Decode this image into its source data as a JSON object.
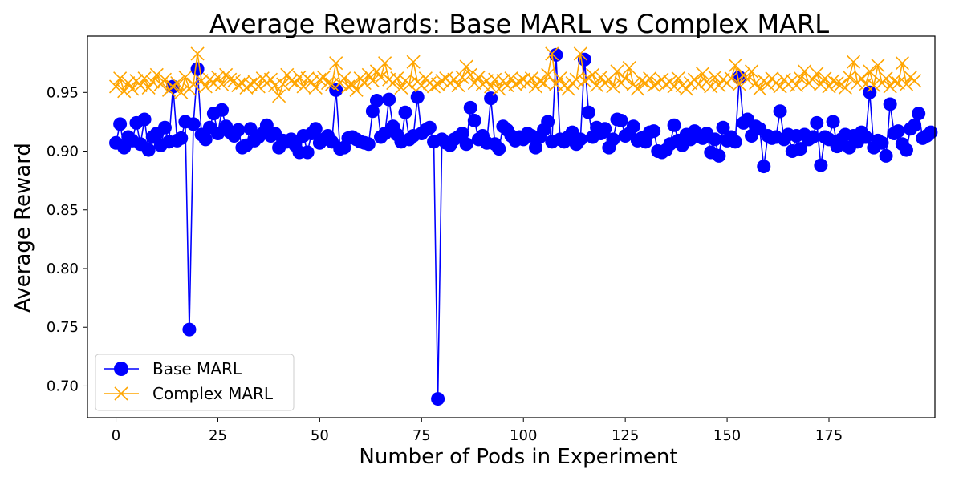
{
  "chart_data": {
    "type": "line",
    "title": "Average Rewards: Base MARL vs Complex MARL",
    "xlabel": "Number of Pods in Experiment",
    "ylabel": "Average Reward",
    "xlim": [
      -7,
      201
    ],
    "ylim": [
      0.673,
      0.998
    ],
    "xticks": [
      0,
      25,
      50,
      75,
      100,
      125,
      150,
      175
    ],
    "yticks": [
      0.7,
      0.75,
      0.8,
      0.85,
      0.9,
      0.95
    ],
    "ytick_labels": [
      "0.70",
      "0.75",
      "0.80",
      "0.85",
      "0.90",
      "0.95"
    ],
    "grid": false,
    "legend_position": "lower-left",
    "series": [
      {
        "name": "Base MARL",
        "color": "#0000ff",
        "marker": "circle",
        "values": [
          0.907,
          0.923,
          0.903,
          0.912,
          0.909,
          0.924,
          0.906,
          0.927,
          0.901,
          0.912,
          0.915,
          0.905,
          0.92,
          0.908,
          0.955,
          0.909,
          0.911,
          0.925,
          0.748,
          0.923,
          0.97,
          0.914,
          0.91,
          0.92,
          0.932,
          0.915,
          0.935,
          0.921,
          0.916,
          0.913,
          0.918,
          0.903,
          0.905,
          0.919,
          0.909,
          0.912,
          0.915,
          0.922,
          0.913,
          0.915,
          0.903,
          0.909,
          0.908,
          0.91,
          0.905,
          0.899,
          0.913,
          0.899,
          0.915,
          0.919,
          0.907,
          0.91,
          0.913,
          0.908,
          0.952,
          0.902,
          0.903,
          0.911,
          0.912,
          0.91,
          0.908,
          0.907,
          0.906,
          0.934,
          0.943,
          0.912,
          0.915,
          0.944,
          0.921,
          0.914,
          0.908,
          0.933,
          0.91,
          0.913,
          0.946,
          0.915,
          0.918,
          0.92,
          0.908,
          0.689,
          0.91,
          0.907,
          0.905,
          0.91,
          0.912,
          0.915,
          0.906,
          0.937,
          0.926,
          0.91,
          0.913,
          0.907,
          0.945,
          0.906,
          0.902,
          0.921,
          0.918,
          0.913,
          0.909,
          0.912,
          0.91,
          0.915,
          0.913,
          0.903,
          0.912,
          0.918,
          0.925,
          0.908,
          0.982,
          0.91,
          0.908,
          0.912,
          0.916,
          0.906,
          0.91,
          0.978,
          0.933,
          0.912,
          0.92,
          0.915,
          0.919,
          0.903,
          0.91,
          0.927,
          0.926,
          0.913,
          0.915,
          0.921,
          0.909,
          0.911,
          0.908,
          0.916,
          0.917,
          0.9,
          0.899,
          0.901,
          0.906,
          0.922,
          0.909,
          0.905,
          0.914,
          0.91,
          0.917,
          0.913,
          0.911,
          0.915,
          0.899,
          0.91,
          0.896,
          0.92,
          0.909,
          0.912,
          0.908,
          0.963,
          0.924,
          0.927,
          0.913,
          0.921,
          0.919,
          0.887,
          0.913,
          0.911,
          0.912,
          0.934,
          0.91,
          0.914,
          0.9,
          0.913,
          0.902,
          0.914,
          0.91,
          0.912,
          0.924,
          0.888,
          0.912,
          0.91,
          0.925,
          0.904,
          0.91,
          0.914,
          0.903,
          0.913,
          0.908,
          0.916,
          0.912,
          0.95,
          0.903,
          0.909,
          0.907,
          0.896,
          0.94,
          0.915,
          0.917,
          0.906,
          0.901,
          0.919,
          0.922,
          0.932,
          0.911,
          0.913,
          0.916
        ]
      },
      {
        "name": "Complex MARL",
        "color": "#ffa500",
        "marker": "x",
        "values": [
          0.955,
          0.962,
          0.951,
          0.958,
          0.953,
          0.96,
          0.956,
          0.962,
          0.954,
          0.959,
          0.965,
          0.957,
          0.961,
          0.952,
          0.955,
          0.958,
          0.95,
          0.963,
          0.953,
          0.957,
          0.983,
          0.96,
          0.955,
          0.961,
          0.958,
          0.963,
          0.957,
          0.965,
          0.961,
          0.96,
          0.956,
          0.958,
          0.954,
          0.957,
          0.959,
          0.955,
          0.962,
          0.958,
          0.961,
          0.956,
          0.947,
          0.957,
          0.965,
          0.96,
          0.958,
          0.963,
          0.955,
          0.962,
          0.959,
          0.954,
          0.961,
          0.963,
          0.958,
          0.957,
          0.975,
          0.958,
          0.962,
          0.955,
          0.957,
          0.952,
          0.962,
          0.958,
          0.965,
          0.96,
          0.968,
          0.963,
          0.975,
          0.961,
          0.958,
          0.962,
          0.954,
          0.96,
          0.957,
          0.976,
          0.959,
          0.956,
          0.962,
          0.958,
          0.955,
          0.957,
          0.96,
          0.962,
          0.958,
          0.961,
          0.956,
          0.963,
          0.972,
          0.965,
          0.958,
          0.963,
          0.957,
          0.96,
          0.955,
          0.961,
          0.953,
          0.96,
          0.956,
          0.962,
          0.957,
          0.959,
          0.961,
          0.958,
          0.962,
          0.955,
          0.96,
          0.958,
          0.965,
          0.983,
          0.957,
          0.962,
          0.956,
          0.953,
          0.958,
          0.961,
          0.983,
          0.96,
          0.962,
          0.965,
          0.956,
          0.963,
          0.958,
          0.961,
          0.955,
          0.968,
          0.958,
          0.962,
          0.971,
          0.957,
          0.953,
          0.96,
          0.958,
          0.962,
          0.956,
          0.958,
          0.961,
          0.957,
          0.959,
          0.955,
          0.962,
          0.956,
          0.953,
          0.958,
          0.961,
          0.957,
          0.966,
          0.959,
          0.955,
          0.963,
          0.956,
          0.961,
          0.958,
          0.962,
          0.973,
          0.957,
          0.965,
          0.961,
          0.968,
          0.958,
          0.953,
          0.96,
          0.957,
          0.962,
          0.958,
          0.955,
          0.961,
          0.957,
          0.96,
          0.956,
          0.962,
          0.968,
          0.958,
          0.961,
          0.966,
          0.957,
          0.962,
          0.955,
          0.96,
          0.958,
          0.957,
          0.954,
          0.963,
          0.976,
          0.958,
          0.962,
          0.957,
          0.968,
          0.956,
          0.973,
          0.958,
          0.962,
          0.955,
          0.96,
          0.958,
          0.975,
          0.957,
          0.963,
          0.96
        ]
      }
    ]
  }
}
